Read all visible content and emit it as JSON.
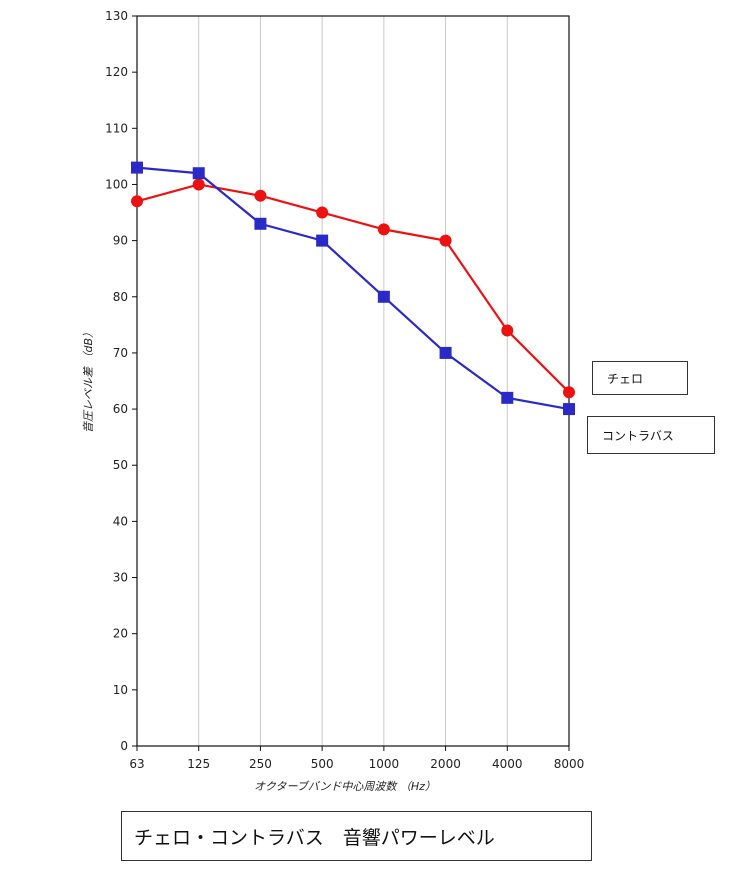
{
  "chart_data": {
    "type": "line",
    "categories": [
      "63",
      "125",
      "250",
      "500",
      "1000",
      "2000",
      "4000",
      "8000"
    ],
    "xlabel": "オクターブバンド中心周波数 （Hz）",
    "ylabel": "音圧レベル差 （dB）",
    "ylim": [
      0,
      130
    ],
    "yticks": [
      0,
      10,
      20,
      30,
      40,
      50,
      60,
      70,
      80,
      90,
      100,
      110,
      120,
      130
    ],
    "grid": "vertical",
    "series": [
      {
        "name": "チェロ",
        "marker": "circle",
        "color": "#ee1111",
        "values": [
          97,
          100,
          98,
          95,
          92,
          90,
          74,
          63
        ]
      },
      {
        "name": "コントラバス",
        "marker": "square",
        "color": "#2a2ac8",
        "values": [
          103,
          102,
          93,
          90,
          80,
          70,
          62,
          60
        ]
      }
    ]
  },
  "legend": {
    "cello": "チェロ",
    "contrabass": "コントラバス"
  },
  "caption": "チェロ・コントラバス　音響パワーレベル"
}
